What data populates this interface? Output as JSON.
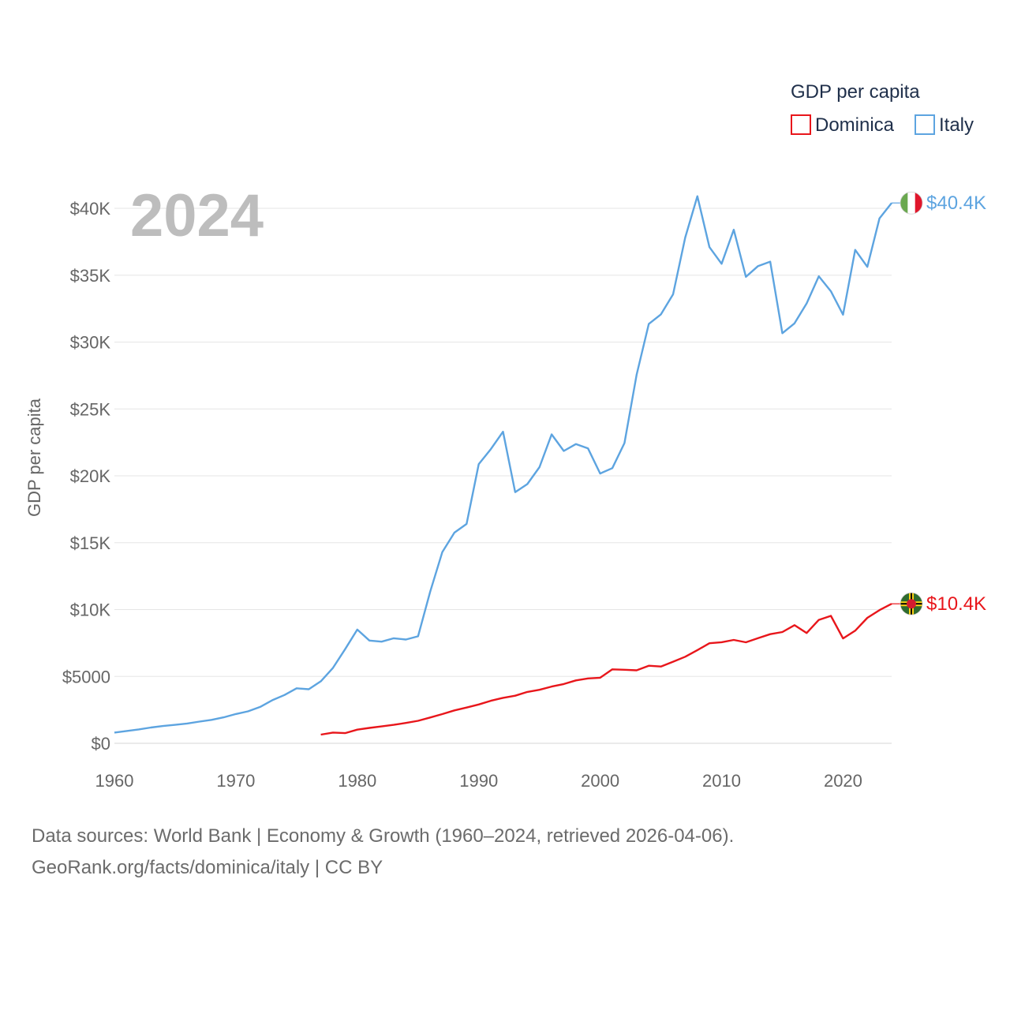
{
  "chart_data": {
    "type": "line",
    "title": "",
    "year_label": "2024",
    "ylabel": "GDP per capita",
    "xlabel": "",
    "xlim": [
      1960,
      2024
    ],
    "ylim": [
      0,
      42000
    ],
    "x_ticks": [
      {
        "value": 1960,
        "label": "1960"
      },
      {
        "value": 1970,
        "label": "1970"
      },
      {
        "value": 1980,
        "label": "1980"
      },
      {
        "value": 1990,
        "label": "1990"
      },
      {
        "value": 2000,
        "label": "2000"
      },
      {
        "value": 2010,
        "label": "2010"
      },
      {
        "value": 2020,
        "label": "2020"
      }
    ],
    "y_ticks": [
      {
        "value": 0,
        "label": "$0"
      },
      {
        "value": 5000,
        "label": "$5000"
      },
      {
        "value": 10000,
        "label": "$10K"
      },
      {
        "value": 15000,
        "label": "$15K"
      },
      {
        "value": 20000,
        "label": "$20K"
      },
      {
        "value": 25000,
        "label": "$25K"
      },
      {
        "value": 30000,
        "label": "$30K"
      },
      {
        "value": 35000,
        "label": "$35K"
      },
      {
        "value": 40000,
        "label": "$40K"
      }
    ],
    "grid": true,
    "legend": {
      "title": "GDP per capita",
      "position": "top-right"
    },
    "series": [
      {
        "name": "Dominica",
        "color": "#e8161b",
        "end_label": "$10.4K",
        "flag_icon": "dominica-flag-icon",
        "x": [
          1977,
          1978,
          1979,
          1980,
          1981,
          1982,
          1983,
          1984,
          1985,
          1986,
          1987,
          1988,
          1989,
          1990,
          1991,
          1992,
          1993,
          1994,
          1995,
          1996,
          1997,
          1998,
          1999,
          2000,
          2001,
          2002,
          2003,
          2004,
          2005,
          2006,
          2007,
          2008,
          2009,
          2010,
          2011,
          2012,
          2013,
          2014,
          2015,
          2016,
          2017,
          2018,
          2019,
          2020,
          2021,
          2022,
          2023,
          2024
        ],
        "values": [
          650,
          800,
          760,
          1020,
          1150,
          1260,
          1380,
          1520,
          1680,
          1930,
          2180,
          2460,
          2670,
          2900,
          3180,
          3400,
          3560,
          3840,
          4000,
          4240,
          4430,
          4700,
          4850,
          4900,
          5530,
          5500,
          5460,
          5800,
          5740,
          6100,
          6470,
          6970,
          7480,
          7560,
          7730,
          7550,
          7860,
          8160,
          8320,
          8830,
          8250,
          9230,
          9530,
          7840,
          8420,
          9380,
          9960,
          10430
        ]
      },
      {
        "name": "Italy",
        "color": "#5da4e0",
        "end_label": "$40.4K",
        "flag_icon": "italy-flag-icon",
        "x": [
          1960,
          1961,
          1962,
          1963,
          1964,
          1965,
          1966,
          1967,
          1968,
          1969,
          1970,
          1971,
          1972,
          1973,
          1974,
          1975,
          1976,
          1977,
          1978,
          1979,
          1980,
          1981,
          1982,
          1983,
          1984,
          1985,
          1986,
          1987,
          1988,
          1989,
          1990,
          1991,
          1992,
          1993,
          1994,
          1995,
          1996,
          1997,
          1998,
          1999,
          2000,
          2001,
          2002,
          2003,
          2004,
          2005,
          2006,
          2007,
          2008,
          2009,
          2010,
          2011,
          2012,
          2013,
          2014,
          2015,
          2016,
          2017,
          2018,
          2019,
          2020,
          2021,
          2022,
          2023,
          2024
        ],
        "values": [
          800,
          920,
          1040,
          1180,
          1290,
          1380,
          1480,
          1620,
          1750,
          1940,
          2190,
          2390,
          2720,
          3220,
          3610,
          4110,
          4040,
          4640,
          5640,
          7040,
          8500,
          7680,
          7600,
          7850,
          7760,
          8000,
          11340,
          14290,
          15750,
          16400,
          20870,
          22000,
          23300,
          18780,
          19380,
          20650,
          23100,
          21860,
          22370,
          22050,
          20170,
          20570,
          22450,
          27560,
          31350,
          32070,
          33570,
          37820,
          40900,
          37100,
          35850,
          38400,
          34880,
          35680,
          36010,
          30660,
          31400,
          32890,
          34920,
          33800,
          32050,
          36890,
          35620,
          39250,
          40400
        ]
      }
    ]
  },
  "footer": {
    "line1": "Data sources: World Bank | Economy & Growth (1960–2024, retrieved 2026-04-06).",
    "line2": "GeoRank.org/facts/dominica/italy | CC BY"
  }
}
